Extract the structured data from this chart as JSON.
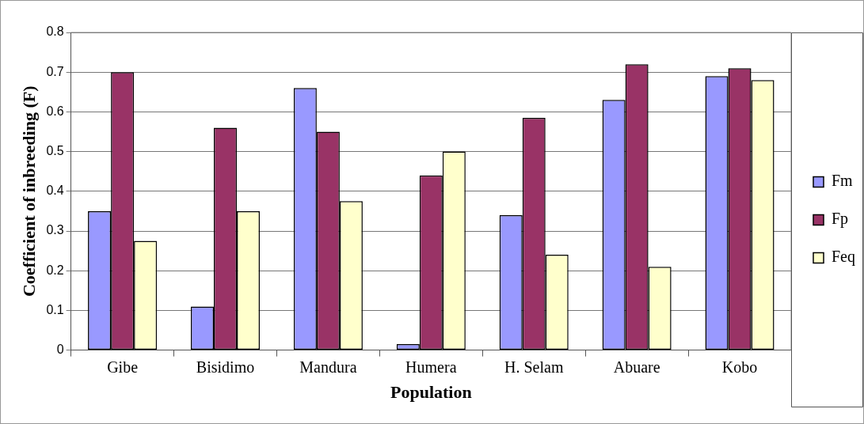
{
  "chart_data": {
    "type": "bar",
    "xlabel": "Population",
    "ylabel": "Coefficient of inbreeding (F)",
    "categories": [
      "Gibe",
      "Bisidimo",
      "Mandura",
      "Humera",
      "H. Selam",
      "Abuare",
      "Kobo"
    ],
    "series": [
      {
        "name": "Fm",
        "color": "#9999ff",
        "values": [
          0.35,
          0.11,
          0.66,
          0.015,
          0.34,
          0.63,
          0.69
        ]
      },
      {
        "name": "Fp",
        "color": "#993366",
        "values": [
          0.7,
          0.56,
          0.55,
          0.44,
          0.585,
          0.72,
          0.71
        ]
      },
      {
        "name": "Feq",
        "color": "#ffffcc",
        "values": [
          0.275,
          0.35,
          0.375,
          0.5,
          0.24,
          0.21,
          0.68
        ]
      }
    ],
    "ylim": [
      0,
      0.8
    ],
    "yticks": [
      0,
      0.1,
      0.2,
      0.3,
      0.4,
      0.5,
      0.6,
      0.7,
      0.8
    ],
    "grid": "y",
    "legend": "right"
  }
}
